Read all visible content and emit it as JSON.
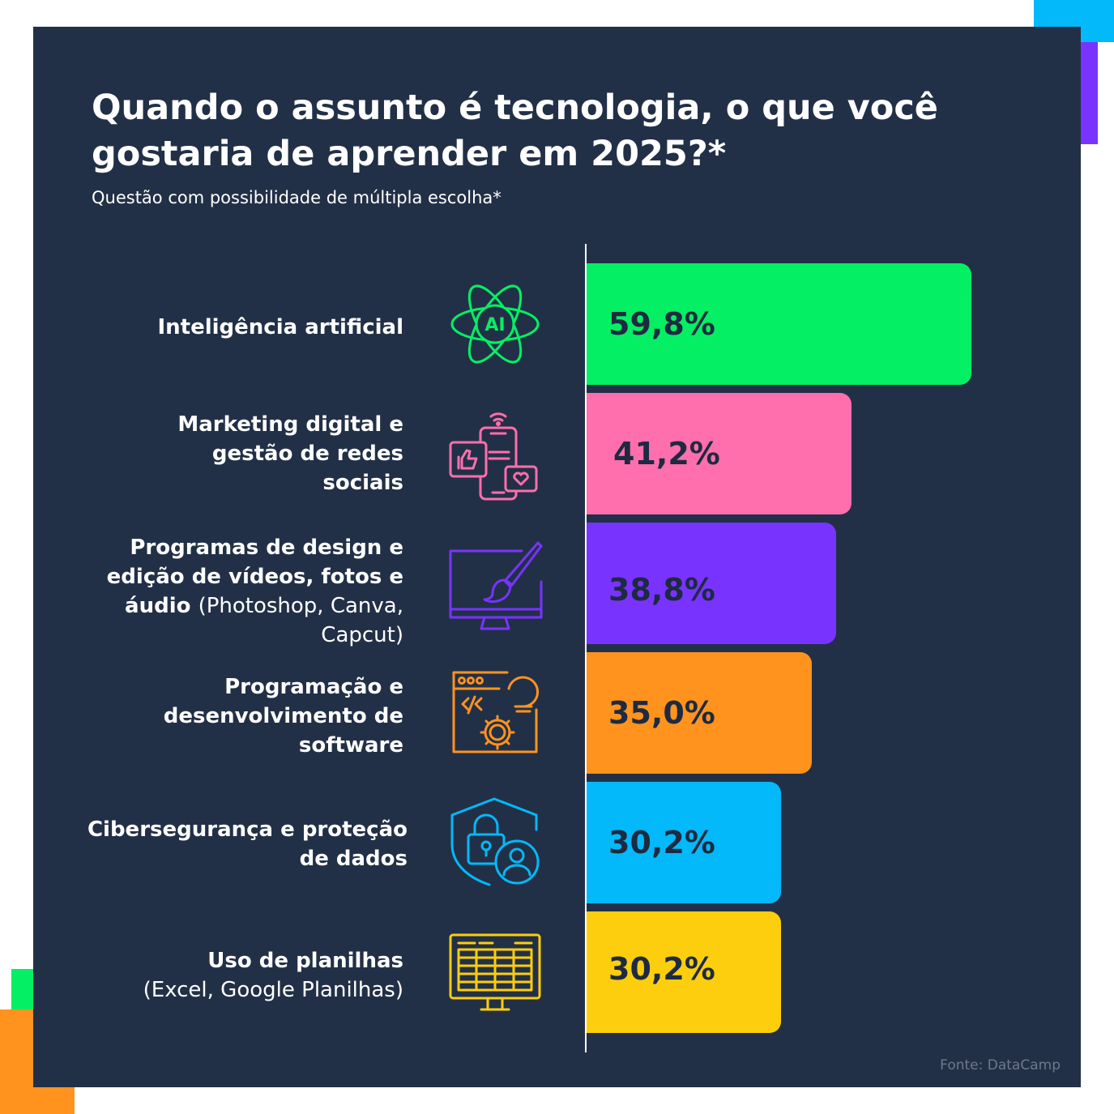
{
  "header": {
    "title": "Quando o assunto é tecnologia, o que você gostaria de aprender em 2025?*",
    "subtitle": "Questão com possibilidade de múltipla escolha*"
  },
  "icons": {
    "ai": {
      "name": "ai-atom-icon",
      "text": "AI"
    },
    "marketing": {
      "name": "social-media-phone-icon"
    },
    "design": {
      "name": "monitor-paintbrush-icon"
    },
    "programming": {
      "name": "code-window-gear-icon"
    },
    "security": {
      "name": "shield-lock-user-icon"
    },
    "spreadsheets": {
      "name": "spreadsheet-monitor-icon"
    }
  },
  "chart_data": {
    "type": "bar",
    "orientation": "horizontal",
    "title": "Quando o assunto é tecnologia, o que você gostaria de aprender em 2025?*",
    "subtitle": "Questão com possibilidade de múltipla escolha*",
    "unit": "%",
    "max_value": 59.8,
    "categories": [
      {
        "bold": "Inteligência artificial",
        "normal": ""
      },
      {
        "bold": "Marketing digital e gestão de redes sociais",
        "normal": ""
      },
      {
        "bold": "Programas de design e edição de vídeos, fotos e áudio",
        "normal": "(Photoshop, Canva, Capcut)"
      },
      {
        "bold": "Programação e desenvolvimento de software",
        "normal": ""
      },
      {
        "bold": "Cibersegurança e proteção de dados",
        "normal": ""
      },
      {
        "bold": "Uso de planilhas",
        "normal": "(Excel, Google Planilhas)"
      }
    ],
    "values": [
      59.8,
      41.2,
      38.8,
      35.0,
      30.2,
      30.2
    ],
    "value_labels": [
      "59,8%",
      "41,2%",
      "38,8%",
      "35,0%",
      "30,2%",
      "30,2%"
    ],
    "colors": [
      "#04ef63",
      "#ff6ead",
      "#7933ff",
      "#ff931e",
      "#03b9f9",
      "#fcce0d"
    ]
  },
  "footer": {
    "source": "Fonte: DataCamp"
  }
}
